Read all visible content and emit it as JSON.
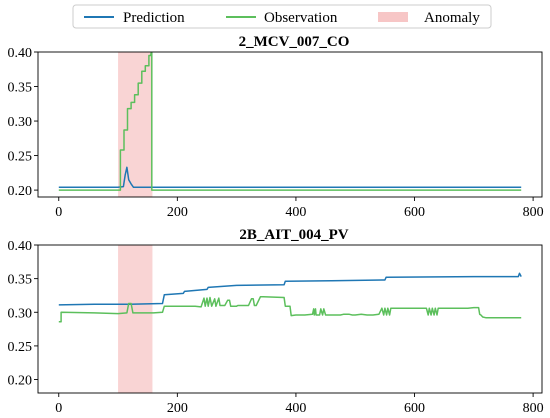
{
  "legend": {
    "items": [
      {
        "label": "Prediction",
        "color": "#1f77b4",
        "kind": "line"
      },
      {
        "label": "Observation",
        "color": "#5cbf5c",
        "kind": "line"
      },
      {
        "label": "Anomaly",
        "color": "#f7c6c6",
        "kind": "patch"
      }
    ]
  },
  "chart_data": [
    {
      "type": "line",
      "title": "2_MCV_007_CO",
      "xlim": [
        -35,
        815
      ],
      "ylim": [
        0.19,
        0.4
      ],
      "xticks": [
        0,
        200,
        400,
        600,
        800
      ],
      "yticks": [
        0.2,
        0.25,
        0.3,
        0.35,
        0.4
      ],
      "ytick_labels": [
        "0.20",
        "0.25",
        "0.30",
        "0.35",
        "0.40"
      ],
      "anomaly_span": [
        100,
        158
      ],
      "series": [
        {
          "name": "Prediction",
          "color": "#1f77b4",
          "x": [
            0,
            100,
            109,
            112,
            115,
            118,
            122,
            126,
            130,
            158,
            780
          ],
          "y": [
            0.204,
            0.204,
            0.205,
            0.222,
            0.233,
            0.215,
            0.209,
            0.204,
            0.204,
            0.204,
            0.204
          ]
        },
        {
          "name": "Observation",
          "color": "#5cbf5c",
          "x": [
            0,
            100,
            104,
            104,
            110,
            110,
            116,
            116,
            122,
            122,
            128,
            128,
            134,
            134,
            140,
            140,
            146,
            146,
            152,
            152,
            155,
            156,
            157,
            157,
            780
          ],
          "y": [
            0.2,
            0.2,
            0.2,
            0.258,
            0.258,
            0.287,
            0.287,
            0.318,
            0.318,
            0.327,
            0.327,
            0.338,
            0.338,
            0.355,
            0.355,
            0.372,
            0.372,
            0.38,
            0.38,
            0.395,
            0.395,
            0.4,
            0.4,
            0.2,
            0.2
          ]
        }
      ]
    },
    {
      "type": "line",
      "title": "2B_AIT_004_PV",
      "xlim": [
        -35,
        815
      ],
      "ylim": [
        0.18,
        0.4
      ],
      "xticks": [
        0,
        200,
        400,
        600,
        800
      ],
      "yticks": [
        0.2,
        0.25,
        0.3,
        0.35,
        0.4
      ],
      "ytick_labels": [
        "0.20",
        "0.25",
        "0.30",
        "0.35",
        "0.40"
      ],
      "anomaly_span": [
        100,
        158
      ],
      "series": [
        {
          "name": "Prediction",
          "color": "#1f77b4",
          "x": [
            0,
            60,
            120,
            175,
            178,
            210,
            212,
            250,
            252,
            300,
            380,
            382,
            460,
            550,
            552,
            700,
            775,
            777,
            780
          ],
          "y": [
            0.311,
            0.312,
            0.312,
            0.313,
            0.326,
            0.328,
            0.331,
            0.334,
            0.337,
            0.34,
            0.341,
            0.346,
            0.347,
            0.348,
            0.352,
            0.353,
            0.353,
            0.358,
            0.353
          ]
        },
        {
          "name": "Observation",
          "color": "#5cbf5c",
          "x": [
            0,
            4,
            4,
            60,
            100,
            115,
            118,
            122,
            125,
            160,
            175,
            178,
            230,
            240,
            245,
            247,
            250,
            252,
            255,
            258,
            263,
            265,
            270,
            272,
            280,
            285,
            288,
            290,
            300,
            302,
            320,
            325,
            328,
            330,
            333,
            340,
            345,
            380,
            382,
            390,
            392,
            400,
            415,
            428,
            430,
            431,
            433,
            434,
            440,
            442,
            445,
            447,
            450,
            458,
            460,
            475,
            480,
            485,
            490,
            495,
            500,
            510,
            520,
            530,
            540,
            545,
            548,
            550,
            553,
            555,
            558,
            560,
            600,
            620,
            623,
            625,
            628,
            630,
            633,
            635,
            638,
            640,
            650,
            680,
            690,
            700,
            708,
            710,
            712,
            715,
            720,
            780
          ],
          "y": [
            0.286,
            0.286,
            0.3,
            0.299,
            0.298,
            0.299,
            0.313,
            0.313,
            0.299,
            0.299,
            0.3,
            0.309,
            0.309,
            0.308,
            0.321,
            0.309,
            0.321,
            0.309,
            0.322,
            0.309,
            0.32,
            0.309,
            0.321,
            0.31,
            0.31,
            0.318,
            0.318,
            0.309,
            0.309,
            0.31,
            0.31,
            0.32,
            0.32,
            0.31,
            0.31,
            0.323,
            0.323,
            0.322,
            0.309,
            0.309,
            0.295,
            0.296,
            0.296,
            0.297,
            0.305,
            0.296,
            0.305,
            0.296,
            0.296,
            0.305,
            0.296,
            0.305,
            0.296,
            0.296,
            0.296,
            0.296,
            0.297,
            0.297,
            0.297,
            0.296,
            0.296,
            0.297,
            0.296,
            0.296,
            0.297,
            0.306,
            0.296,
            0.306,
            0.296,
            0.306,
            0.296,
            0.306,
            0.306,
            0.306,
            0.296,
            0.306,
            0.296,
            0.306,
            0.296,
            0.306,
            0.296,
            0.306,
            0.306,
            0.306,
            0.306,
            0.307,
            0.307,
            0.297,
            0.296,
            0.293,
            0.292,
            0.292
          ]
        }
      ]
    }
  ]
}
